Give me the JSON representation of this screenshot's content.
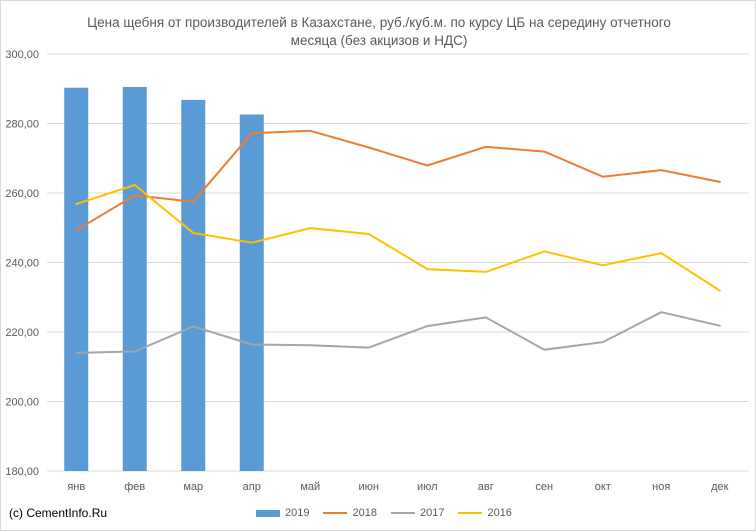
{
  "chart_data": {
    "type": "bar+line",
    "title_lines": [
      "Цена щебня от производителей в Казахстане, руб./куб.м. по курсу ЦБ на середину отчетного",
      "месяца (без акцизов и НДС)"
    ],
    "categories": [
      "янв",
      "фев",
      "мар",
      "апр",
      "май",
      "июн",
      "июл",
      "авг",
      "сен",
      "окт",
      "ноя",
      "дек"
    ],
    "ylim": [
      180,
      300
    ],
    "yticks": [
      "180,00",
      "200,00",
      "220,00",
      "240,00",
      "260,00",
      "280,00",
      "300,00"
    ],
    "ytick_values": [
      180,
      200,
      220,
      240,
      260,
      280,
      300
    ],
    "grid": true,
    "legend_position": "bottom",
    "series": [
      {
        "name": "2019",
        "kind": "bar",
        "color": "#5b9bd5",
        "values": [
          290.3,
          290.5,
          286.8,
          282.6,
          null,
          null,
          null,
          null,
          null,
          null,
          null,
          null
        ]
      },
      {
        "name": "2018",
        "kind": "line",
        "color": "#ed7d31",
        "values": [
          249.3,
          259.3,
          257.5,
          277.2,
          277.9,
          273.1,
          267.9,
          273.3,
          271.9,
          264.7,
          266.6,
          263.2
        ]
      },
      {
        "name": "2017",
        "kind": "line",
        "color": "#a5a5a5",
        "values": [
          214.0,
          214.4,
          221.6,
          216.4,
          216.2,
          215.5,
          221.7,
          224.2,
          214.9,
          217.1,
          225.7,
          221.8
        ]
      },
      {
        "name": "2016",
        "kind": "line",
        "color": "#ffc000",
        "values": [
          256.8,
          262.3,
          248.5,
          245.7,
          249.9,
          248.2,
          238.1,
          237.3,
          243.2,
          239.2,
          242.7,
          231.9
        ]
      }
    ]
  },
  "credit": "(c) CementInfo.Ru"
}
